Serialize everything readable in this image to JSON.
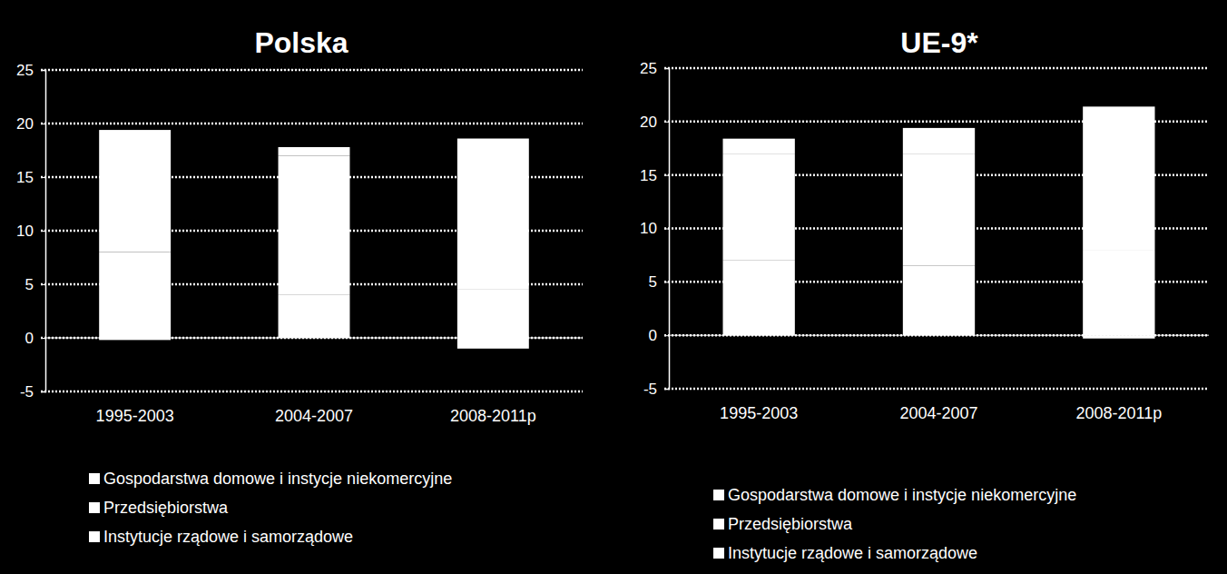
{
  "chart_data": [
    {
      "type": "bar",
      "title": "Polska",
      "categories": [
        "1995-2003",
        "2004-2007",
        "2008-2011p"
      ],
      "series": [
        {
          "name": "Gospodarstwa domowe i instycje niekomercyjne",
          "color": "#ffffff",
          "values": [
            8.0,
            4.0,
            4.5
          ]
        },
        {
          "name": "Przedsiębiorstwa",
          "color": "#ffffff",
          "values": [
            11.4,
            13.0,
            14.1
          ]
        },
        {
          "name": "Instytucje rządowe i samorządowe",
          "color": "#ffffff",
          "values": [
            -0.2,
            0.8,
            -1.0
          ]
        }
      ],
      "ylim": [
        -5,
        25
      ],
      "yticks": [
        -5,
        0,
        5,
        10,
        15,
        20,
        25
      ],
      "grid": true,
      "stacked": true,
      "legend": "bottom"
    },
    {
      "type": "bar",
      "title": "UE-9*",
      "categories": [
        "1995-2003",
        "2004-2007",
        "2008-2011p"
      ],
      "series": [
        {
          "name": "Gospodarstwa domowe i instycje niekomercyjne",
          "color": "#ffffff",
          "values": [
            7.0,
            6.5,
            8.0
          ]
        },
        {
          "name": "Przedsiębiorstwa",
          "color": "#ffffff",
          "values": [
            10.0,
            10.5,
            13.4
          ]
        },
        {
          "name": "Instytucje rządowe i samorządowe",
          "color": "#ffffff",
          "values": [
            1.4,
            2.4,
            -0.3
          ]
        }
      ],
      "ylim": [
        -5,
        25
      ],
      "yticks": [
        -5,
        0,
        5,
        10,
        15,
        20,
        25
      ],
      "grid": true,
      "stacked": true,
      "legend": "bottom"
    }
  ]
}
